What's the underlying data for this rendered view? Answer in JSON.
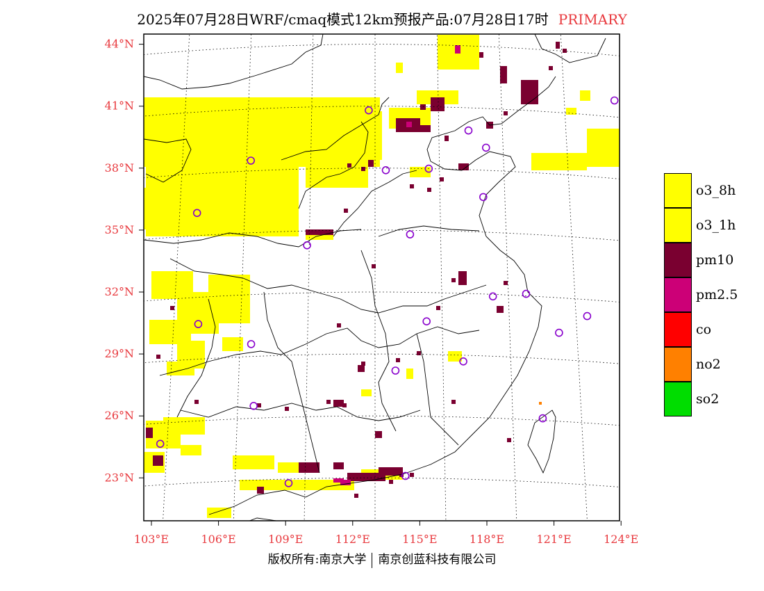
{
  "title": {
    "main": "2025年07月28日WRF/cmaq模式12km预报产品:07月28日17时",
    "primary": "PRIMARY"
  },
  "colors": {
    "o3_8h": "#ffff00",
    "o3_1h": "#ffff00",
    "pm10": "#7a0030",
    "pm2_5": "#cc0077",
    "co": "#ff0000",
    "no2": "#ff8000",
    "so2": "#00dd00",
    "station_marker": "#8800cc",
    "tick_label": "#e8383d"
  },
  "legend": [
    {
      "label": "o3_8h",
      "color": "#ffff00"
    },
    {
      "label": "o3_1h",
      "color": "#ffff00"
    },
    {
      "label": "pm10",
      "color": "#7a0030"
    },
    {
      "label": "pm2.5",
      "color": "#cc0077"
    },
    {
      "label": "co",
      "color": "#ff0000"
    },
    {
      "label": "no2",
      "color": "#ff8000"
    },
    {
      "label": "so2",
      "color": "#00dd00"
    }
  ],
  "lat_labels": [
    "44°N",
    "41°N",
    "38°N",
    "35°N",
    "32°N",
    "29°N",
    "26°N",
    "23°N"
  ],
  "lon_labels": [
    "103°E",
    "106°E",
    "109°E",
    "112°E",
    "115°E",
    "118°E",
    "121°E",
    "124°E"
  ],
  "map": {
    "extent": {
      "lon": [
        102.7,
        124
      ],
      "lat": [
        21.0,
        44.5
      ]
    },
    "projection": "lambert-conformal",
    "graticule": {
      "lon_step": 3,
      "lat_step": 3,
      "style": "dotted"
    }
  },
  "stations": [
    {
      "lon": 123.4,
      "lat": 41.8
    },
    {
      "lon": 116.4,
      "lat": 39.9
    },
    {
      "lon": 117.2,
      "lat": 39.1
    },
    {
      "lon": 111.7,
      "lat": 40.8
    },
    {
      "lon": 112.5,
      "lat": 37.9
    },
    {
      "lon": 114.5,
      "lat": 38.0
    },
    {
      "lon": 106.2,
      "lat": 38.5
    },
    {
      "lon": 117.0,
      "lat": 36.7
    },
    {
      "lon": 103.8,
      "lat": 36.1
    },
    {
      "lon": 108.9,
      "lat": 34.3
    },
    {
      "lon": 113.6,
      "lat": 34.8
    },
    {
      "lon": 117.3,
      "lat": 31.9
    },
    {
      "lon": 118.8,
      "lat": 32.1
    },
    {
      "lon": 121.5,
      "lat": 31.2
    },
    {
      "lon": 120.2,
      "lat": 30.3
    },
    {
      "lon": 114.3,
      "lat": 30.6
    },
    {
      "lon": 112.9,
      "lat": 28.2
    },
    {
      "lon": 115.9,
      "lat": 28.7
    },
    {
      "lon": 104.1,
      "lat": 30.7
    },
    {
      "lon": 106.5,
      "lat": 29.6
    },
    {
      "lon": 106.7,
      "lat": 26.6
    },
    {
      "lon": 119.3,
      "lat": 26.1
    },
    {
      "lon": 102.7,
      "lat": 25.0
    },
    {
      "lon": 108.3,
      "lat": 22.8
    },
    {
      "lon": 113.3,
      "lat": 23.1
    }
  ],
  "copyright": {
    "left": "版权所有:南京大学",
    "right": "南京创蓝科技有限公司"
  }
}
